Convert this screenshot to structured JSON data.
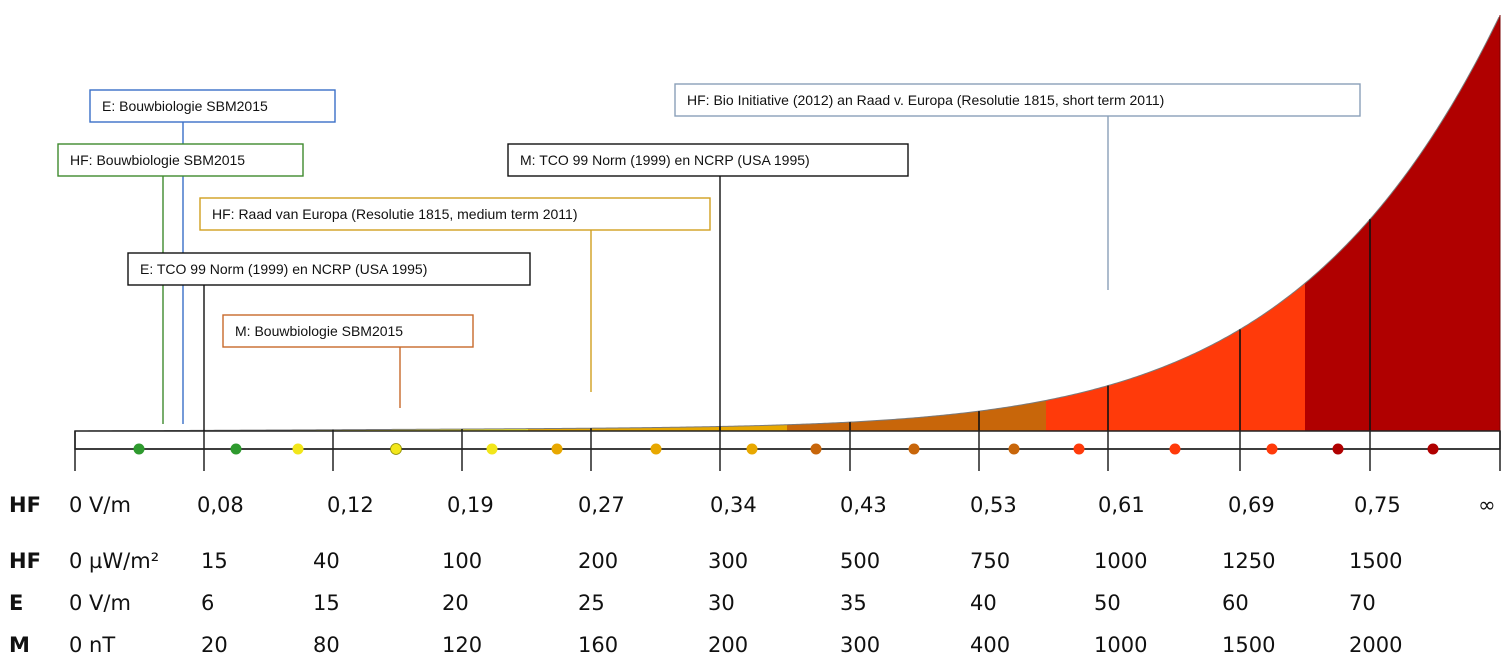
{
  "chart_data": {
    "type": "area",
    "scale_rows": [
      {
        "label": "HF",
        "unit_value": "0 V/m",
        "ticks": [
          "0,08",
          "0,12",
          "0,19",
          "0,27",
          "0,34",
          "0,43",
          "0,53",
          "0,61",
          "0,69",
          "0,75",
          "∞"
        ]
      },
      {
        "label": "HF",
        "unit_value": "0 µW/m²",
        "ticks": [
          "15",
          "40",
          "100",
          "200",
          "300",
          "500",
          "750",
          "1000",
          "1250",
          "1500"
        ]
      },
      {
        "label": "E",
        "unit_value": "0 V/m",
        "ticks": [
          "6",
          "15",
          "20",
          "25",
          "30",
          "35",
          "40",
          "50",
          "60",
          "70"
        ]
      },
      {
        "label": "M",
        "unit_value": "0 nT",
        "ticks": [
          "20",
          "80",
          "120",
          "160",
          "200",
          "300",
          "400",
          "1000",
          "1500",
          "2000"
        ]
      }
    ],
    "bands": [
      {
        "color": "#2e9a2e"
      },
      {
        "color": "#f2e61a"
      },
      {
        "color": "#e8a800"
      },
      {
        "color": "#c8660a"
      },
      {
        "color": "#ff3a0a"
      },
      {
        "color": "#b00000"
      }
    ],
    "annotations": [
      {
        "text": "E: Bouwbiologie SBM2015",
        "color": "#3a6fc7"
      },
      {
        "text": "HF: Bouwbiologie SBM2015",
        "color": "#3f8a2e"
      },
      {
        "text": "HF: Raad van Europa (Resolutie 1815,  medium term 2011)",
        "color": "#d1a020"
      },
      {
        "text": "E:  TCO 99 Norm (1999) en NCRP (USA 1995)",
        "color": "#111111"
      },
      {
        "text": "M: Bouwbiologie SBM2015",
        "color": "#c86a2a"
      },
      {
        "text": "M:  TCO 99 Norm (1999) en NCRP (USA 1995)",
        "color": "#111111"
      },
      {
        "text": "HF:  Bio Initiative (2012) an Raad v. Europa (Resolutie 1815,  short term 2011)",
        "color": "#8aa0b8"
      }
    ]
  }
}
